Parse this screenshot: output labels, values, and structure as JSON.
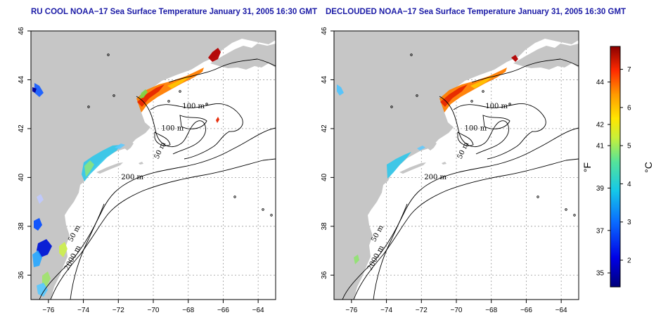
{
  "colors": {
    "land": "#c6c6c6",
    "ocean": "#ffffff",
    "frame": "#000000",
    "title": "#1a1aa6",
    "grid": "#9a9a9a"
  },
  "panels": [
    {
      "title": "RU COOL NOAA−17 Sea Surface Temperature January 31, 2005 16:30 GMT",
      "variant": "cool"
    },
    {
      "title": "DECLOUDED NOAA−17 Sea Surface Temperature January 31, 2005 16:30 GMT",
      "variant": "declouded"
    }
  ],
  "axes": {
    "x_ticks": [
      "−76",
      "−74",
      "−72",
      "−70",
      "−68",
      "−66",
      "−64"
    ],
    "y_ticks": [
      "36",
      "38",
      "40",
      "42",
      "44",
      "46"
    ],
    "x_values": [
      -76,
      -74,
      -72,
      -70,
      -68,
      -66,
      -64
    ],
    "y_values": [
      36,
      38,
      40,
      42,
      44,
      46
    ],
    "lon_range": [
      -77,
      -63
    ],
    "lat_range": [
      35,
      46
    ]
  },
  "contour_labels": [
    {
      "text": "100 m",
      "lon": -67.7,
      "lat": 42.9
    },
    {
      "text": "100 m",
      "lon": -68.9,
      "lat": 42.0
    },
    {
      "text": "50 m",
      "lon": -69.6,
      "lat": 41.1
    },
    {
      "text": "200 m",
      "lon": -71.2,
      "lat": 40.0
    },
    {
      "text": "50 m",
      "lon": -74.5,
      "lat": 37.7
    },
    {
      "text": "2000 m",
      "lon": -74.6,
      "lat": 36.7
    }
  ],
  "colorbar": {
    "celsius_ticks": [
      "2",
      "3",
      "4",
      "5",
      "6",
      "7"
    ],
    "celsius_values": [
      2,
      3,
      4,
      5,
      6,
      7
    ],
    "fahrenheit_ticks": [
      "35",
      "37",
      "39",
      "41",
      "42",
      "44"
    ],
    "fahrenheit_values": [
      35,
      37,
      39,
      41,
      42,
      44
    ],
    "c_range": [
      1.3,
      7.6
    ],
    "f_label": "°F",
    "c_label": "°C"
  }
}
